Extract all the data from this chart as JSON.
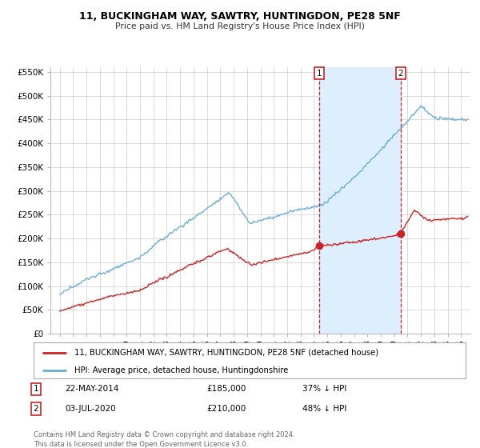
{
  "title": "11, BUCKINGHAM WAY, SAWTRY, HUNTINGDON, PE28 5NF",
  "subtitle": "Price paid vs. HM Land Registry's House Price Index (HPI)",
  "ylim": [
    0,
    560000
  ],
  "yticks": [
    0,
    50000,
    100000,
    150000,
    200000,
    250000,
    300000,
    350000,
    400000,
    450000,
    500000,
    550000
  ],
  "ytick_labels": [
    "£0",
    "£50K",
    "£100K",
    "£150K",
    "£200K",
    "£250K",
    "£300K",
    "£350K",
    "£400K",
    "£450K",
    "£500K",
    "£550K"
  ],
  "hpi_color": "#6baed6",
  "price_color": "#cc2222",
  "shade_color": "#ddeeff",
  "marker1_x": 2014.38,
  "marker1_y": 185000,
  "marker2_x": 2020.5,
  "marker2_y": 210000,
  "xlim_left": 1994.3,
  "xlim_right": 2025.7,
  "legend_label1": "11, BUCKINGHAM WAY, SAWTRY, HUNTINGDON, PE28 5NF (detached house)",
  "legend_label2": "HPI: Average price, detached house, Huntingdonshire",
  "table_row1": [
    "1",
    "22-MAY-2014",
    "£185,000",
    "37% ↓ HPI"
  ],
  "table_row2": [
    "2",
    "03-JUL-2020",
    "£210,000",
    "48% ↓ HPI"
  ],
  "footnote": "Contains HM Land Registry data © Crown copyright and database right 2024.\nThis data is licensed under the Open Government Licence v3.0.",
  "background_color": "#ffffff",
  "grid_color": "#cccccc"
}
